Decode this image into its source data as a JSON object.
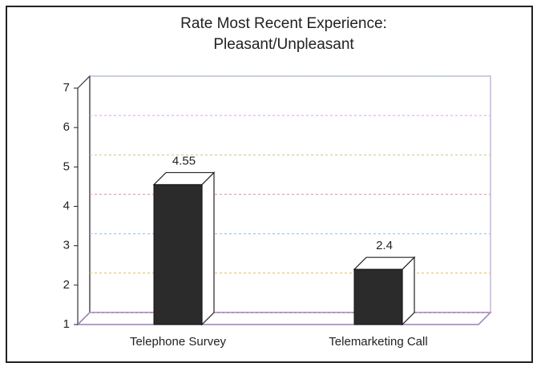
{
  "chart_data": {
    "type": "bar3d",
    "title": [
      "Rate Most Recent Experience:",
      "Pleasant/Unpleasant"
    ],
    "categories": [
      "Telephone Survey",
      "Telemarketing Call"
    ],
    "values": [
      4.55,
      2.4
    ],
    "color": "#2b2b2b",
    "ylim": [
      1,
      7
    ],
    "yticks": [
      1,
      2,
      3,
      4,
      5,
      6,
      7
    ],
    "grid": true
  }
}
